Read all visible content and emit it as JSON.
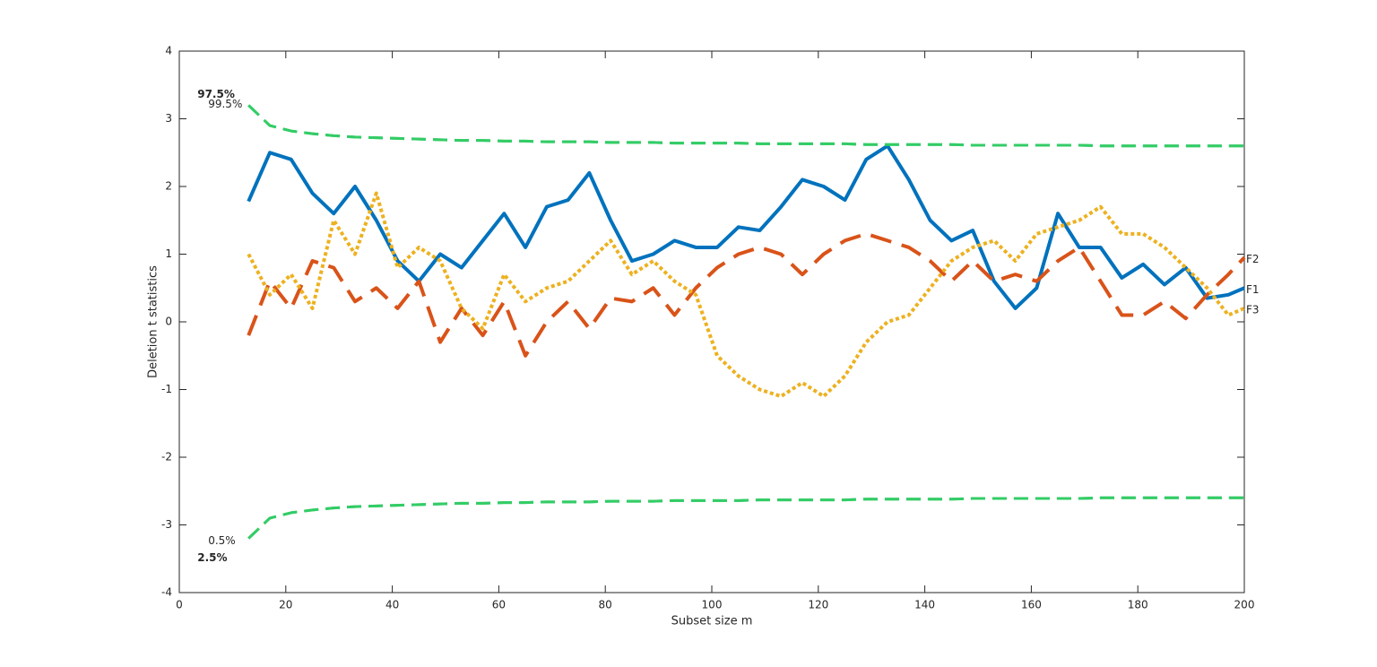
{
  "chart_data": {
    "type": "line",
    "x_label": "Subset size m",
    "y_label": "Deletion t statistics",
    "x": [
      13,
      17,
      21,
      25,
      29,
      33,
      37,
      41,
      45,
      49,
      53,
      57,
      61,
      65,
      69,
      73,
      77,
      81,
      85,
      89,
      93,
      97,
      101,
      105,
      109,
      113,
      117,
      121,
      125,
      129,
      133,
      137,
      141,
      145,
      149,
      153,
      157,
      161,
      165,
      169,
      173,
      177,
      181,
      185,
      189,
      193,
      197,
      200
    ],
    "series": [
      {
        "name": "F1",
        "color": "#0072bd",
        "style": "solid",
        "values": [
          1.78,
          2.5,
          2.4,
          1.9,
          1.6,
          2.0,
          1.5,
          0.9,
          0.6,
          1.0,
          0.8,
          1.2,
          1.6,
          1.1,
          1.7,
          1.8,
          2.2,
          1.5,
          0.9,
          1.0,
          1.2,
          1.1,
          1.1,
          1.4,
          1.35,
          1.7,
          2.1,
          2.0,
          1.8,
          2.4,
          2.6,
          2.1,
          1.5,
          1.2,
          1.35,
          0.6,
          0.2,
          0.5,
          1.6,
          1.1,
          1.1,
          0.65,
          0.85,
          0.55,
          0.8,
          0.35,
          0.4,
          0.5
        ]
      },
      {
        "name": "F2",
        "color": "#d95319",
        "style": "dashed",
        "values": [
          -0.2,
          0.6,
          0.2,
          0.9,
          0.8,
          0.3,
          0.5,
          0.2,
          0.6,
          -0.3,
          0.2,
          -0.2,
          0.3,
          -0.5,
          0.0,
          0.3,
          -0.1,
          0.35,
          0.3,
          0.5,
          0.1,
          0.5,
          0.8,
          1.0,
          1.1,
          1.0,
          0.7,
          1.0,
          1.2,
          1.3,
          1.2,
          1.1,
          0.9,
          0.6,
          0.9,
          0.6,
          0.7,
          0.6,
          0.9,
          1.1,
          0.6,
          0.1,
          0.1,
          0.3,
          0.05,
          0.4,
          0.7,
          0.95
        ]
      },
      {
        "name": "F3",
        "color": "#edb120",
        "style": "dotted",
        "values": [
          1.0,
          0.4,
          0.7,
          0.2,
          1.5,
          1.0,
          1.9,
          0.8,
          1.1,
          0.9,
          0.2,
          -0.1,
          0.7,
          0.3,
          0.5,
          0.6,
          0.9,
          1.2,
          0.7,
          0.9,
          0.6,
          0.4,
          -0.5,
          -0.8,
          -1.0,
          -1.1,
          -0.9,
          -1.1,
          -0.8,
          -0.3,
          0.0,
          0.1,
          0.5,
          0.9,
          1.1,
          1.2,
          0.9,
          1.3,
          1.4,
          1.5,
          1.7,
          1.3,
          1.3,
          1.1,
          0.8,
          0.5,
          0.1,
          0.2
        ]
      },
      {
        "name": "99.5%",
        "color": "#33cc66",
        "style": "envelope",
        "label_pos": "upper",
        "bold": false,
        "values": [
          3.2,
          2.9,
          2.82,
          2.78,
          2.75,
          2.73,
          2.72,
          2.71,
          2.7,
          2.69,
          2.68,
          2.68,
          2.67,
          2.67,
          2.66,
          2.66,
          2.66,
          2.65,
          2.65,
          2.65,
          2.64,
          2.64,
          2.64,
          2.64,
          2.63,
          2.63,
          2.63,
          2.63,
          2.63,
          2.62,
          2.62,
          2.62,
          2.62,
          2.62,
          2.61,
          2.61,
          2.61,
          2.61,
          2.61,
          2.61,
          2.6,
          2.6,
          2.6,
          2.6,
          2.6,
          2.6,
          2.6,
          2.6
        ]
      },
      {
        "name": "97.5%",
        "color": "#33cc66",
        "style": "envelope",
        "label_pos": "upper",
        "bold": true,
        "values": [
          3.2,
          2.9,
          2.82,
          2.78,
          2.75,
          2.73,
          2.72,
          2.71,
          2.7,
          2.69,
          2.68,
          2.68,
          2.67,
          2.67,
          2.66,
          2.66,
          2.66,
          2.65,
          2.65,
          2.65,
          2.64,
          2.64,
          2.64,
          2.64,
          2.63,
          2.63,
          2.63,
          2.63,
          2.63,
          2.62,
          2.62,
          2.62,
          2.62,
          2.62,
          2.61,
          2.61,
          2.61,
          2.61,
          2.61,
          2.61,
          2.6,
          2.6,
          2.6,
          2.6,
          2.6,
          2.6,
          2.6,
          2.6
        ]
      },
      {
        "name": "0.5%",
        "color": "#33cc66",
        "style": "envelope",
        "label_pos": "lower",
        "bold": false,
        "values": [
          -3.2,
          -2.9,
          -2.82,
          -2.78,
          -2.75,
          -2.73,
          -2.72,
          -2.71,
          -2.7,
          -2.69,
          -2.68,
          -2.68,
          -2.67,
          -2.67,
          -2.66,
          -2.66,
          -2.66,
          -2.65,
          -2.65,
          -2.65,
          -2.64,
          -2.64,
          -2.64,
          -2.64,
          -2.63,
          -2.63,
          -2.63,
          -2.63,
          -2.63,
          -2.62,
          -2.62,
          -2.62,
          -2.62,
          -2.62,
          -2.61,
          -2.61,
          -2.61,
          -2.61,
          -2.61,
          -2.61,
          -2.6,
          -2.6,
          -2.6,
          -2.6,
          -2.6,
          -2.6,
          -2.6,
          -2.6
        ]
      },
      {
        "name": "2.5%",
        "color": "#33cc66",
        "style": "envelope",
        "label_pos": "lower",
        "bold": true,
        "values": [
          -3.2,
          -2.9,
          -2.82,
          -2.78,
          -2.75,
          -2.73,
          -2.72,
          -2.71,
          -2.7,
          -2.69,
          -2.68,
          -2.68,
          -2.67,
          -2.67,
          -2.66,
          -2.66,
          -2.66,
          -2.65,
          -2.65,
          -2.65,
          -2.64,
          -2.64,
          -2.64,
          -2.64,
          -2.63,
          -2.63,
          -2.63,
          -2.63,
          -2.63,
          -2.62,
          -2.62,
          -2.62,
          -2.62,
          -2.62,
          -2.61,
          -2.61,
          -2.61,
          -2.61,
          -2.61,
          -2.61,
          -2.6,
          -2.6,
          -2.6,
          -2.6,
          -2.6,
          -2.6,
          -2.6,
          -2.6
        ]
      }
    ],
    "xlim": [
      0,
      200
    ],
    "ylim": [
      -4,
      4
    ],
    "xticks": [
      0,
      20,
      40,
      60,
      80,
      100,
      120,
      140,
      160,
      180,
      200
    ],
    "yticks": [
      -4,
      -3,
      -2,
      -1,
      0,
      1,
      2,
      3,
      4
    ],
    "grid": false
  }
}
